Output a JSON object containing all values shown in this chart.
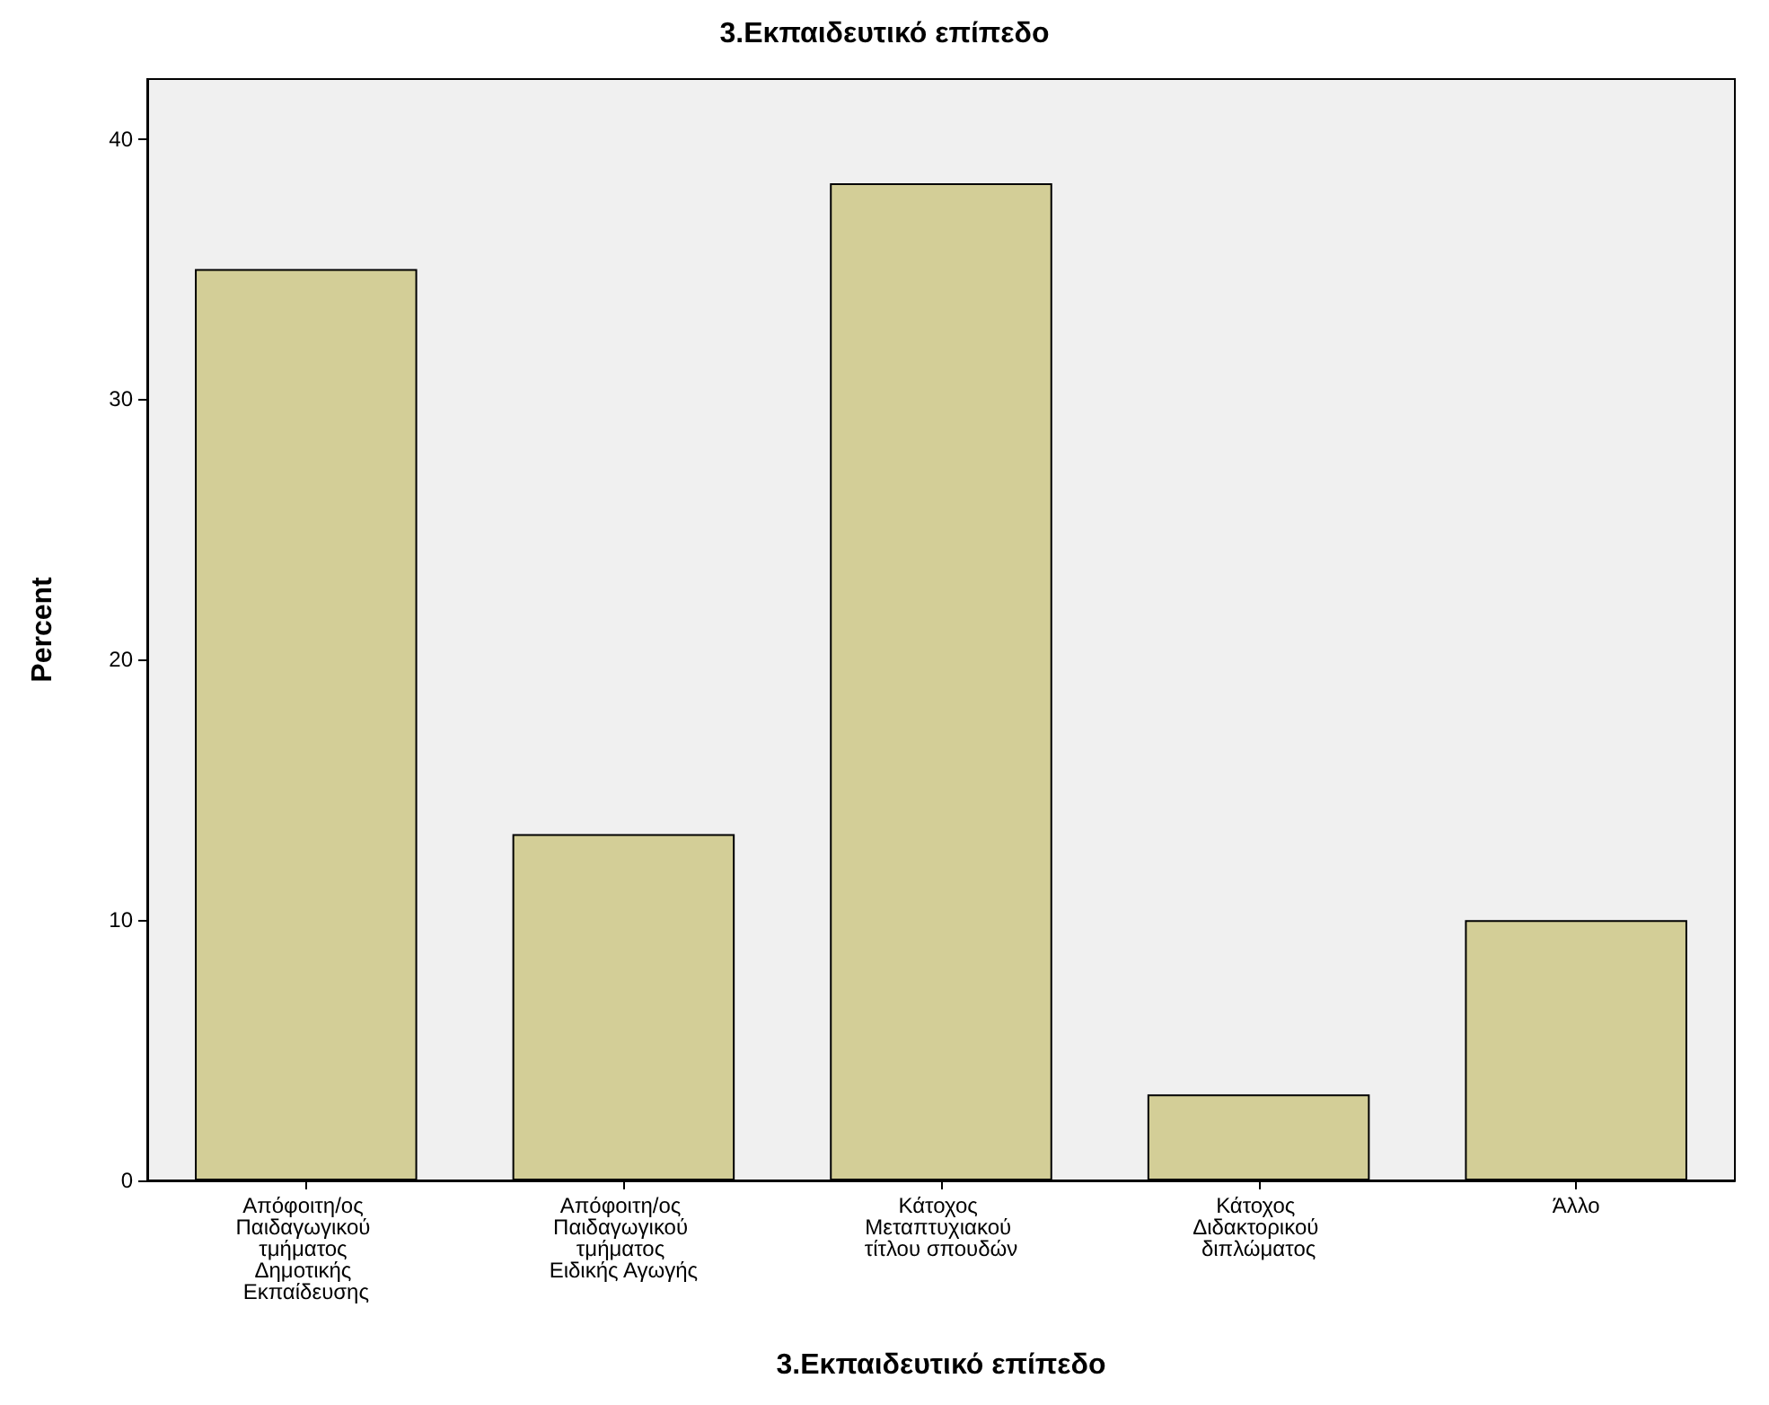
{
  "chart_data": {
    "type": "bar",
    "title": "3.Εκπαιδευτικό επίπεδο",
    "xlabel": "3.Εκπαιδευτικό επίπεδο",
    "ylabel": "Percent",
    "categories": [
      "Απόφοιτη/ος Παιδαγωγικού τμήματος Δημοτικής Εκπαίδευσης",
      "Απόφοιτη/ος Παιδαγωγικού τμήματος Ειδικής Αγωγής",
      "Κάτοχος Μεταπτυχιακού τίτλου σπουδών",
      "Κάτοχος Διδακτορικού διπλώματος",
      "Άλλο"
    ],
    "values": [
      35.0,
      13.3,
      38.3,
      3.3,
      10.0
    ],
    "color": "#d3ce97",
    "ylim": [
      0,
      42.3
    ],
    "yticks": [
      0,
      10,
      20,
      30,
      40
    ],
    "grid": false
  }
}
